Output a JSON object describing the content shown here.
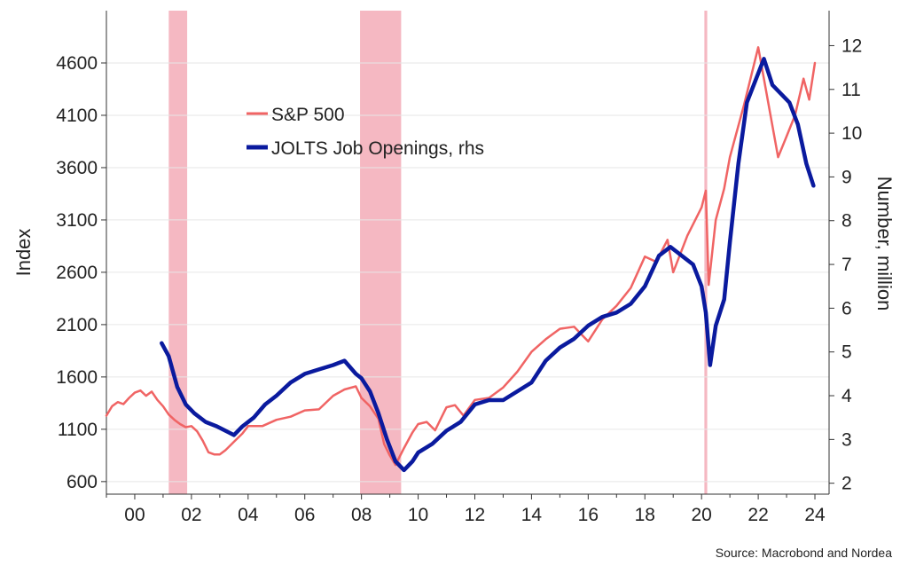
{
  "chart_data": {
    "type": "line",
    "xlabel": "",
    "x_ticks": [
      "00",
      "02",
      "04",
      "06",
      "08",
      "10",
      "12",
      "14",
      "16",
      "18",
      "20",
      "22",
      "24"
    ],
    "xlim": [
      1999.0,
      2024.5
    ],
    "ylabel_left": "Index",
    "ylim_left": [
      480,
      5100
    ],
    "yticks_left": [
      600,
      1100,
      1600,
      2100,
      2600,
      3100,
      3600,
      4100,
      4600
    ],
    "ylabel_right": "Number, million",
    "ylim_right": [
      1.75,
      12.8
    ],
    "yticks_right": [
      2,
      3,
      4,
      5,
      6,
      7,
      8,
      9,
      10,
      11,
      12
    ],
    "grid": true,
    "legend_position": "top-left",
    "recessions": [
      [
        2001.2,
        2001.85
      ],
      [
        2007.95,
        2009.4
      ],
      [
        2020.1,
        2020.2
      ]
    ],
    "series": [
      {
        "name": "S&P 500",
        "axis": "left",
        "color": "#f06464",
        "x": [
          1999.0,
          1999.2,
          1999.4,
          1999.6,
          1999.8,
          2000.0,
          2000.2,
          2000.4,
          2000.6,
          2000.8,
          2001.0,
          2001.2,
          2001.4,
          2001.6,
          2001.8,
          2002.0,
          2002.2,
          2002.4,
          2002.6,
          2002.8,
          2003.0,
          2003.2,
          2003.5,
          2003.8,
          2004.0,
          2004.5,
          2005.0,
          2005.5,
          2006.0,
          2006.5,
          2007.0,
          2007.4,
          2007.8,
          2008.0,
          2008.3,
          2008.6,
          2008.8,
          2009.0,
          2009.2,
          2009.5,
          2009.8,
          2010.0,
          2010.3,
          2010.6,
          2011.0,
          2011.3,
          2011.6,
          2012.0,
          2012.5,
          2013.0,
          2013.5,
          2014.0,
          2014.5,
          2015.0,
          2015.5,
          2016.0,
          2016.5,
          2017.0,
          2017.5,
          2018.0,
          2018.4,
          2018.8,
          2019.0,
          2019.5,
          2020.0,
          2020.15,
          2020.25,
          2020.5,
          2020.8,
          2021.0,
          2021.5,
          2022.0,
          2022.4,
          2022.7,
          2023.0,
          2023.3,
          2023.6,
          2023.8,
          2024.0
        ],
        "values": [
          1230,
          1320,
          1360,
          1340,
          1400,
          1450,
          1470,
          1420,
          1460,
          1380,
          1320,
          1240,
          1190,
          1150,
          1120,
          1130,
          1080,
          990,
          880,
          860,
          860,
          900,
          980,
          1060,
          1130,
          1130,
          1190,
          1220,
          1280,
          1290,
          1420,
          1480,
          1510,
          1400,
          1320,
          1200,
          960,
          850,
          760,
          920,
          1070,
          1150,
          1170,
          1090,
          1310,
          1330,
          1230,
          1380,
          1400,
          1500,
          1650,
          1840,
          1960,
          2060,
          2080,
          1940,
          2150,
          2280,
          2450,
          2750,
          2700,
          2910,
          2600,
          2950,
          3220,
          3380,
          2480,
          3100,
          3400,
          3700,
          4200,
          4750,
          4150,
          3700,
          3900,
          4100,
          4450,
          4250,
          4600
        ]
      },
      {
        "name": "JOLTS Job Openings, rhs",
        "axis": "right",
        "color": "#0a1a9e",
        "x": [
          2000.95,
          2001.2,
          2001.5,
          2001.8,
          2002.1,
          2002.5,
          2002.9,
          2003.2,
          2003.5,
          2003.8,
          2004.2,
          2004.6,
          2005.0,
          2005.5,
          2006.0,
          2006.5,
          2007.0,
          2007.4,
          2007.8,
          2008.0,
          2008.3,
          2008.6,
          2008.9,
          2009.2,
          2009.5,
          2009.8,
          2010.0,
          2010.5,
          2011.0,
          2011.5,
          2012.0,
          2012.5,
          2013.0,
          2013.5,
          2014.0,
          2014.5,
          2015.0,
          2015.5,
          2016.0,
          2016.5,
          2017.0,
          2017.5,
          2018.0,
          2018.5,
          2018.9,
          2019.3,
          2019.7,
          2020.0,
          2020.15,
          2020.3,
          2020.5,
          2020.8,
          2021.0,
          2021.3,
          2021.6,
          2021.9,
          2022.2,
          2022.5,
          2022.8,
          2023.1,
          2023.4,
          2023.7,
          2023.95
        ],
        "values": [
          5.2,
          4.9,
          4.2,
          3.8,
          3.6,
          3.4,
          3.3,
          3.2,
          3.1,
          3.3,
          3.5,
          3.8,
          4.0,
          4.3,
          4.5,
          4.6,
          4.7,
          4.8,
          4.5,
          4.4,
          4.1,
          3.6,
          3.0,
          2.5,
          2.3,
          2.5,
          2.7,
          2.9,
          3.2,
          3.4,
          3.8,
          3.9,
          3.9,
          4.1,
          4.3,
          4.8,
          5.1,
          5.3,
          5.6,
          5.8,
          5.9,
          6.1,
          6.5,
          7.2,
          7.4,
          7.2,
          7.0,
          6.5,
          5.9,
          4.7,
          5.6,
          6.2,
          7.5,
          9.3,
          10.7,
          11.2,
          11.7,
          11.1,
          10.9,
          10.7,
          10.2,
          9.3,
          8.8
        ]
      }
    ]
  },
  "legend": {
    "items": [
      {
        "label": "S&P 500",
        "color": "#f06464"
      },
      {
        "label": "JOLTS Job Openings, rhs",
        "color": "#0a1a9e"
      }
    ]
  },
  "source_text": "Source: Macrobond and Nordea",
  "colors": {
    "recession_fill": "#f5b8c2",
    "grid": "#e6e6e6",
    "axis": "#333333"
  }
}
